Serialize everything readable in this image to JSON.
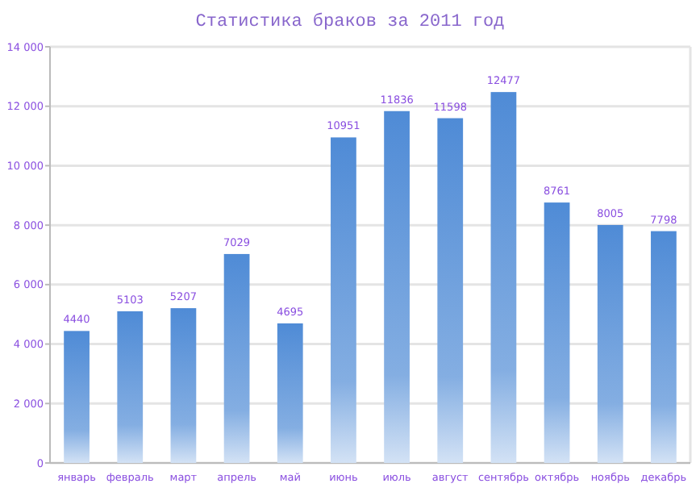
{
  "chart_data": {
    "type": "bar",
    "title": "Статистика браков за 2011 год",
    "categories": [
      "январь",
      "февраль",
      "март",
      "апрель",
      "май",
      "июнь",
      "июль",
      "август",
      "сентябрь",
      "октябрь",
      "ноябрь",
      "декабрь"
    ],
    "values": [
      4440,
      5103,
      5207,
      7029,
      4695,
      10951,
      11836,
      11598,
      12477,
      8761,
      8005,
      7798
    ],
    "color": "#4f8bd6",
    "ylim": [
      0,
      14000
    ],
    "yticks": [
      {
        "value": 0,
        "label": "0"
      },
      {
        "value": 2000,
        "label": "2 000"
      },
      {
        "value": 4000,
        "label": "4 000"
      },
      {
        "value": 6000,
        "label": "6 000"
      },
      {
        "value": 8000,
        "label": "8 000"
      },
      {
        "value": 10000,
        "label": "10 000"
      },
      {
        "value": 12000,
        "label": "12 000"
      },
      {
        "value": 14000,
        "label": "14 000"
      }
    ],
    "grid": "y",
    "data_labels": true
  }
}
